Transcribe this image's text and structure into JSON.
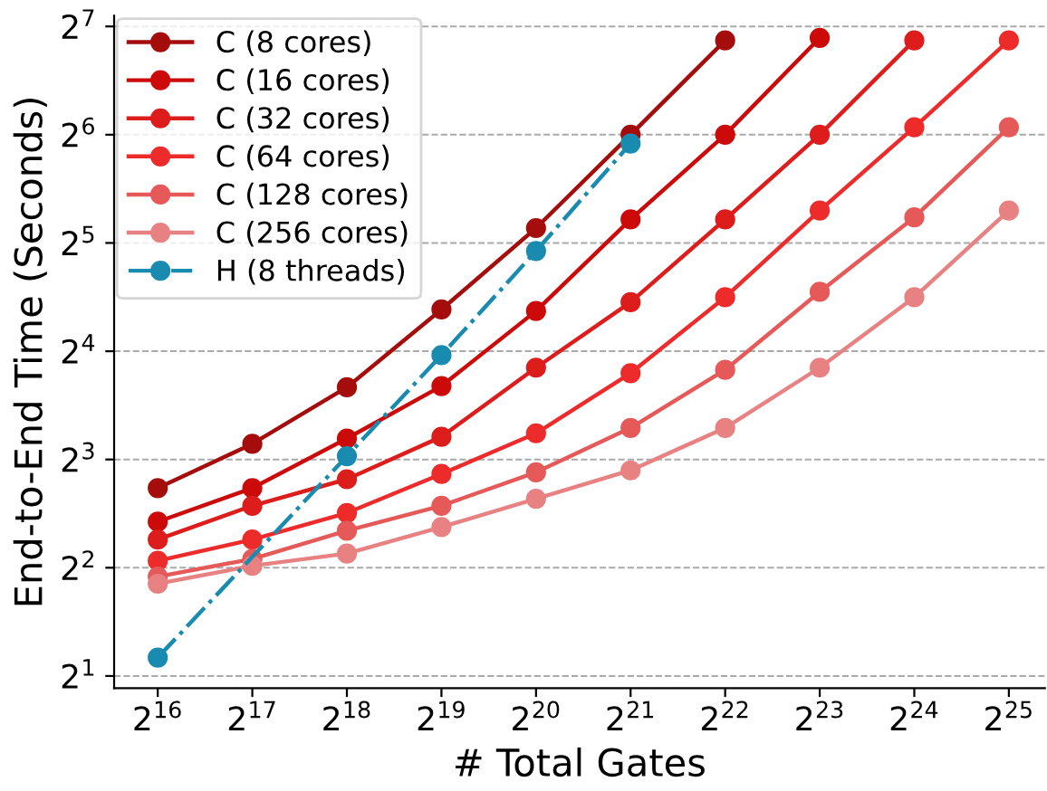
{
  "chart_data": {
    "type": "line",
    "xlabel": "# Total Gates",
    "ylabel": "End-to-End Time (Seconds)",
    "log": "xy",
    "x": [
      65536,
      131072,
      262144,
      524288,
      1048576,
      2097152,
      4194304,
      8388608,
      16777216,
      33554432
    ],
    "series": [
      {
        "name": "C (8 cores)",
        "color": "#a50d0d",
        "x": [
          65536,
          131072,
          262144,
          524288,
          1048576,
          2097152,
          4194304
        ],
        "values": [
          6.66,
          8.84,
          12.7,
          20.9,
          35.2,
          64,
          117
        ]
      },
      {
        "name": "C (16 cores)",
        "color": "#cc0a0a",
        "x": [
          65536,
          131072,
          262144,
          524288,
          1048576,
          2097152,
          4194304,
          8388608
        ],
        "values": [
          5.37,
          6.66,
          9.15,
          12.8,
          20.7,
          37.2,
          64,
          119
        ]
      },
      {
        "name": "C (32 cores)",
        "color": "#dd1c1c",
        "x": [
          65536,
          131072,
          262144,
          524288,
          1048576,
          2097152,
          4194304,
          8388608,
          16777216
        ],
        "values": [
          4.79,
          5.95,
          7.05,
          9.25,
          14.4,
          21.9,
          37.2,
          64,
          117
        ]
      },
      {
        "name": "C (64 cores)",
        "color": "#ee2b2b",
        "values": [
          4.18,
          4.79,
          5.68,
          7.29,
          9.46,
          13.9,
          22.6,
          39.4,
          67.1,
          117
        ]
      },
      {
        "name": "C (128 cores)",
        "color": "#e65959",
        "values": [
          3.78,
          4.23,
          5.07,
          5.95,
          7.37,
          9.79,
          14.2,
          23.4,
          37.7,
          67.1
        ]
      },
      {
        "name": "C (256 cores)",
        "color": "#e88282",
        "values": [
          3.61,
          4.05,
          4.38,
          5.19,
          6.22,
          7.46,
          9.79,
          14.4,
          22.6,
          39.4
        ]
      },
      {
        "name": "H (8 threads)",
        "color": "#1a8bb0",
        "line_style": "dashdot",
        "x": [
          65536,
          262144,
          524288,
          1048576,
          2097152
        ],
        "values": [
          2.25,
          8.17,
          15.6,
          30.4,
          60.5
        ]
      }
    ],
    "xlim": [
      47600,
      43700000
    ],
    "ylim": [
      1.85,
      137
    ],
    "xticks": [
      {
        "value": 65536,
        "label": "2$^{16}$"
      },
      {
        "value": 131072,
        "label": "2$^{17}$"
      },
      {
        "value": 262144,
        "label": "2$^{18}$"
      },
      {
        "value": 524288,
        "label": "2$^{19}$"
      },
      {
        "value": 1048576,
        "label": "2$^{20}$"
      },
      {
        "value": 2097152,
        "label": "2$^{21}$"
      },
      {
        "value": 4194304,
        "label": "2$^{22}$"
      },
      {
        "value": 8388608,
        "label": "2$^{23}$"
      },
      {
        "value": 16777216,
        "label": "2$^{24}$"
      },
      {
        "value": 33554432,
        "label": "2$^{25}$"
      }
    ],
    "yticks": [
      {
        "value": 2,
        "label": "2$^{1}$"
      },
      {
        "value": 4,
        "label": "2$^{2}$"
      },
      {
        "value": 8,
        "label": "2$^{3}$"
      },
      {
        "value": 16,
        "label": "2$^{4}$"
      },
      {
        "value": 32,
        "label": "2$^{5}$"
      },
      {
        "value": 64,
        "label": "2$^{6}$"
      },
      {
        "value": 128,
        "label": "2$^{7}$"
      }
    ],
    "grid": "y",
    "legend": "top left",
    "marker": "circle",
    "line_style": "solid"
  }
}
